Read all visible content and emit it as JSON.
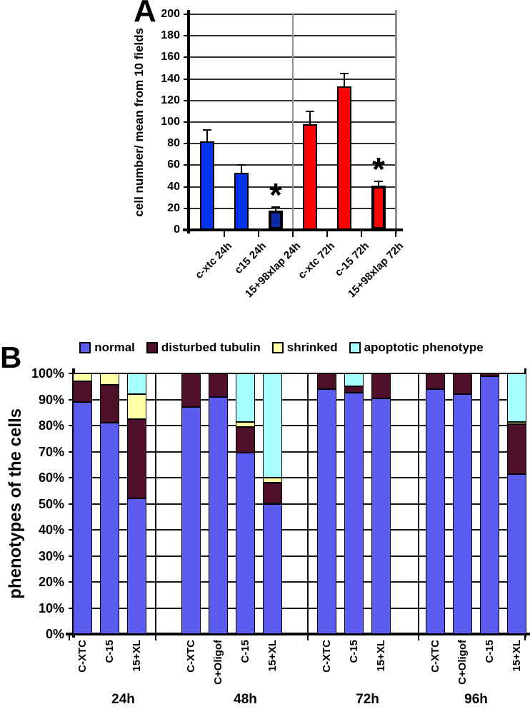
{
  "figure": {
    "panel_a_letter": "A",
    "panel_b_letter": "B",
    "background": "#ffffff"
  },
  "chart_data": [
    {
      "panel": "A",
      "type": "bar",
      "ylabel": "cell number/ mean from 10 fields",
      "ylim": [
        0,
        200
      ],
      "ytick_step": 20,
      "ytick_labels": [
        "0",
        "20",
        "40",
        "60",
        "80",
        "100",
        "120",
        "140",
        "160",
        "180",
        "200"
      ],
      "grid": true,
      "categories": [
        "c-xtc 24h",
        "c15 24h",
        "15+98xlap 24h",
        "c-xtc 72h",
        "c-15 72h",
        "15+98xlap 72h"
      ],
      "values": [
        82,
        53,
        18,
        98,
        133,
        41
      ],
      "error_plus": [
        11,
        7,
        3,
        12,
        12,
        4
      ],
      "bar_colors": [
        "#0533EC",
        "#0533EC",
        "#0C2BA4",
        "#F90505",
        "#F90505",
        "#F90505"
      ],
      "thick_outline": [
        false,
        false,
        true,
        false,
        false,
        true
      ],
      "significant": [
        false,
        false,
        true,
        false,
        false,
        true
      ],
      "significance_marker": "*",
      "axis_color": "#000000",
      "gridline_color": "#2f2f2f",
      "divider_color": "#8f8f8f"
    },
    {
      "panel": "B",
      "type": "stacked-bar-100",
      "ylabel": "phenotypes of the cells",
      "ylim": [
        0,
        100
      ],
      "ytick_step": 10,
      "ytick_suffix": "%",
      "ytick_labels": [
        "0%",
        "10%",
        "20%",
        "30%",
        "40%",
        "50%",
        "60%",
        "70%",
        "80%",
        "90%",
        "100%"
      ],
      "grid": true,
      "series_keys": [
        "normal",
        "disturbed",
        "shrinked",
        "apoptotic"
      ],
      "legend": [
        {
          "label": "normal",
          "color": "#5C5CF0"
        },
        {
          "label": "disturbed tubulin",
          "color": "#4F0F2A"
        },
        {
          "label": "shrinked",
          "color": "#FFFFA6"
        },
        {
          "label": "apoptotic phenotype",
          "color": "#A8FFFF"
        }
      ],
      "legend_position": "top",
      "groups": [
        {
          "label": "24h",
          "bars": [
            {
              "label": "C-XTC",
              "normal": 89,
              "disturbed": 8,
              "shrinked": 3,
              "apoptotic": 0
            },
            {
              "label": "C-15",
              "normal": 81,
              "disturbed": 14.5,
              "shrinked": 4.5,
              "apoptotic": 0
            },
            {
              "label": "15+XL",
              "normal": 52,
              "disturbed": 30.5,
              "shrinked": 9.5,
              "apoptotic": 8
            }
          ]
        },
        {
          "label": "48h",
          "bars": [
            {
              "label": "C-XTC",
              "normal": 87,
              "disturbed": 13,
              "shrinked": 0,
              "apoptotic": 0
            },
            {
              "label": "C+Oligof",
              "normal": 91,
              "disturbed": 9,
              "shrinked": 0,
              "apoptotic": 0
            },
            {
              "label": "C-15",
              "normal": 69.5,
              "disturbed": 10,
              "shrinked": 2,
              "apoptotic": 18.5
            },
            {
              "label": "15+XL",
              "normal": 50,
              "disturbed": 8,
              "shrinked": 2,
              "apoptotic": 40
            }
          ]
        },
        {
          "label": "72h",
          "bars": [
            {
              "label": "C-XTC",
              "normal": 94,
              "disturbed": 6,
              "shrinked": 0,
              "apoptotic": 0
            },
            {
              "label": "C-15",
              "normal": 92.5,
              "disturbed": 2.5,
              "shrinked": 0,
              "apoptotic": 5
            },
            {
              "label": "15+XL",
              "normal": 90.5,
              "disturbed": 9.5,
              "shrinked": 0,
              "apoptotic": 0
            }
          ]
        },
        {
          "label": "96h",
          "bars": [
            {
              "label": "C-XTC",
              "normal": 94,
              "disturbed": 6,
              "shrinked": 0,
              "apoptotic": 0
            },
            {
              "label": "C+Oligof",
              "normal": 92,
              "disturbed": 8,
              "shrinked": 0,
              "apoptotic": 0
            },
            {
              "label": "C-15",
              "normal": 99,
              "disturbed": 1,
              "shrinked": 0,
              "apoptotic": 0
            },
            {
              "label": "15+XL",
              "normal": 61.5,
              "disturbed": 19,
              "shrinked": 1,
              "apoptotic": 18.5
            }
          ]
        }
      ],
      "gridline_color": "#141414",
      "axis_color": "#000000"
    }
  ]
}
